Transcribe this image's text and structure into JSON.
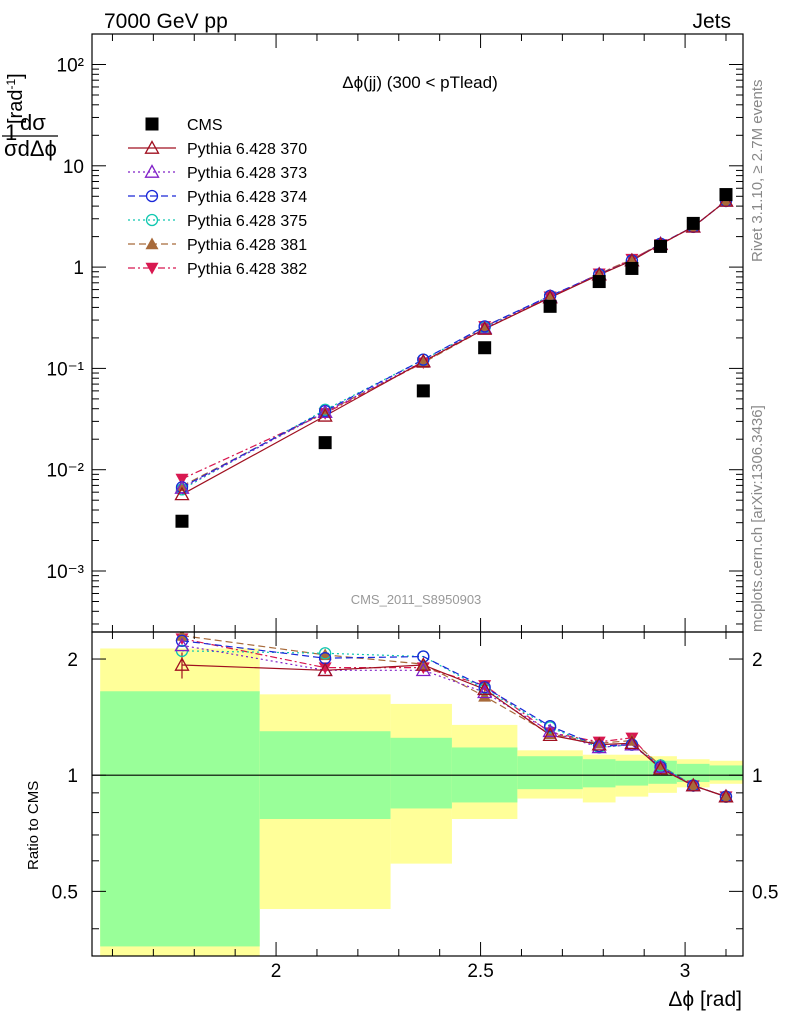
{
  "header": {
    "left": "7000 GeV pp",
    "right": "Jets",
    "rivet": "Rivet 3.1.10, ≥ 2.7M events",
    "mcplots": "mcplots.cern.ch [arXiv:1306.3436]",
    "analysis": "CMS_2011_S8950903",
    "plot_title": "Δϕ(jj) (300 < pTlead)"
  },
  "chart_data": [
    {
      "type": "scatter",
      "name": "main",
      "title": "Δϕ(jj) (300 < pTlead)",
      "ylabel": "1/σ dσ/dΔϕ [rad⁻¹]",
      "yscale": "log",
      "xlim": [
        1.55,
        3.1416
      ],
      "ylim": [
        0.00025,
        200
      ],
      "x": [
        1.77,
        2.12,
        2.36,
        2.51,
        2.67,
        2.79,
        2.87,
        2.94,
        3.02,
        3.1
      ],
      "legend_position": "top-left",
      "series": [
        {
          "name": "CMS",
          "color": "#000000",
          "marker": "filled-square",
          "line": "none",
          "values": [
            0.0031,
            0.0185,
            0.06,
            0.16,
            0.41,
            0.72,
            0.97,
            1.6,
            2.7,
            5.2
          ]
        },
        {
          "name": "Pythia 6.428 370",
          "color": "#a01020",
          "marker": "open-triangle-up",
          "line": "solid",
          "values": [
            0.0057,
            0.034,
            0.117,
            0.245,
            0.5,
            0.84,
            1.16,
            1.68,
            2.5,
            4.5
          ]
        },
        {
          "name": "Pythia 6.428 373",
          "color": "#8020c8",
          "marker": "open-triangle-up",
          "line": "dotted",
          "values": [
            0.0066,
            0.037,
            0.117,
            0.25,
            0.51,
            0.85,
            1.16,
            1.7,
            2.5,
            4.5
          ]
        },
        {
          "name": "Pythia 6.428 374",
          "color": "#1a28d8",
          "marker": "open-circle",
          "line": "dashed",
          "values": [
            0.0067,
            0.038,
            0.122,
            0.26,
            0.52,
            0.85,
            1.16,
            1.7,
            2.5,
            4.5
          ]
        },
        {
          "name": "Pythia 6.428 375",
          "color": "#10c8b0",
          "marker": "open-circle",
          "line": "dotted",
          "values": [
            0.0064,
            0.039,
            0.122,
            0.255,
            0.52,
            0.84,
            1.16,
            1.7,
            2.5,
            4.5
          ]
        },
        {
          "name": "Pythia 6.428 381",
          "color": "#a86a3a",
          "marker": "filled-triangle-up",
          "line": "dashed",
          "values": [
            0.0069,
            0.037,
            0.114,
            0.245,
            0.5,
            0.86,
            1.19,
            1.7,
            2.5,
            4.5
          ]
        },
        {
          "name": "Pythia 6.428 382",
          "color": "#d81850",
          "marker": "filled-triangle-down",
          "line": "dashdot",
          "values": [
            0.0081,
            0.036,
            0.114,
            0.26,
            0.51,
            0.86,
            1.2,
            1.68,
            2.5,
            4.5
          ]
        }
      ]
    },
    {
      "type": "scatter",
      "name": "ratio",
      "ylabel": "Ratio to CMS",
      "xlabel": "Δϕ [rad]",
      "yscale": "log",
      "xlim": [
        1.55,
        3.1416
      ],
      "ylim": [
        0.34,
        2.35
      ],
      "reference_line": 1,
      "bands": {
        "edges": [
          1.57,
          1.96,
          2.28,
          2.43,
          2.59,
          2.75,
          2.83,
          2.91,
          2.98,
          3.06,
          3.1416
        ],
        "stat_low": [
          0.36,
          0.77,
          0.82,
          0.85,
          0.92,
          0.93,
          0.94,
          0.95,
          0.96,
          0.97
        ],
        "stat_high": [
          1.65,
          1.3,
          1.25,
          1.18,
          1.12,
          1.1,
          1.09,
          1.09,
          1.07,
          1.06
        ],
        "tot_low": [
          0.33,
          0.45,
          0.59,
          0.77,
          0.87,
          0.85,
          0.88,
          0.9,
          0.93,
          0.95
        ],
        "tot_high": [
          2.13,
          1.62,
          1.53,
          1.35,
          1.16,
          1.13,
          1.13,
          1.12,
          1.1,
          1.09
        ],
        "stat_color": "#99ff99",
        "tot_color": "#ffff99"
      },
      "x": [
        1.77,
        2.12,
        2.36,
        2.51,
        2.67,
        2.79,
        2.87,
        2.94,
        3.02,
        3.1
      ],
      "series": [
        {
          "name": "Pythia 6.428 370",
          "values": [
            1.93,
            1.87,
            1.93,
            1.67,
            1.27,
            1.2,
            1.21,
            1.04,
            0.94,
            0.88
          ]
        },
        {
          "name": "Pythia 6.428 373",
          "values": [
            2.17,
            1.87,
            1.87,
            1.64,
            1.3,
            1.18,
            1.2,
            1.05,
            0.94,
            0.88
          ]
        },
        {
          "name": "Pythia 6.428 374",
          "values": [
            2.23,
            2.01,
            2.03,
            1.69,
            1.34,
            1.19,
            1.2,
            1.05,
            0.94,
            0.88
          ]
        },
        {
          "name": "Pythia 6.428 375",
          "values": [
            2.1,
            2.07,
            2.03,
            1.67,
            1.33,
            1.18,
            1.2,
            1.06,
            0.94,
            0.88
          ]
        },
        {
          "name": "Pythia 6.428 381",
          "values": [
            2.3,
            2.05,
            1.94,
            1.6,
            1.28,
            1.21,
            1.23,
            1.06,
            0.94,
            0.88
          ]
        },
        {
          "name": "Pythia 6.428 382",
          "values": [
            2.26,
            1.9,
            1.9,
            1.71,
            1.29,
            1.22,
            1.25,
            1.04,
            0.94,
            0.88
          ]
        }
      ],
      "cms_error_370": [
        0.15,
        0.04,
        0.03,
        0.03,
        0.02,
        0.015,
        0.015,
        0.01,
        0.01,
        0.01
      ]
    }
  ],
  "axes": {
    "x_ticks": [
      "2",
      "2.5",
      "3"
    ],
    "x_tick_values": [
      2,
      2.5,
      3
    ],
    "y_ticks_main": [
      "10⁻³",
      "10⁻²",
      "10⁻¹",
      "1",
      "10",
      "10²"
    ],
    "y_ticks_main_values": [
      0.001,
      0.01,
      0.1,
      1,
      10,
      100
    ],
    "y_ticks_ratio": [
      "0.5",
      "1",
      "2"
    ],
    "y_ticks_ratio_values": [
      0.5,
      1,
      2
    ]
  }
}
